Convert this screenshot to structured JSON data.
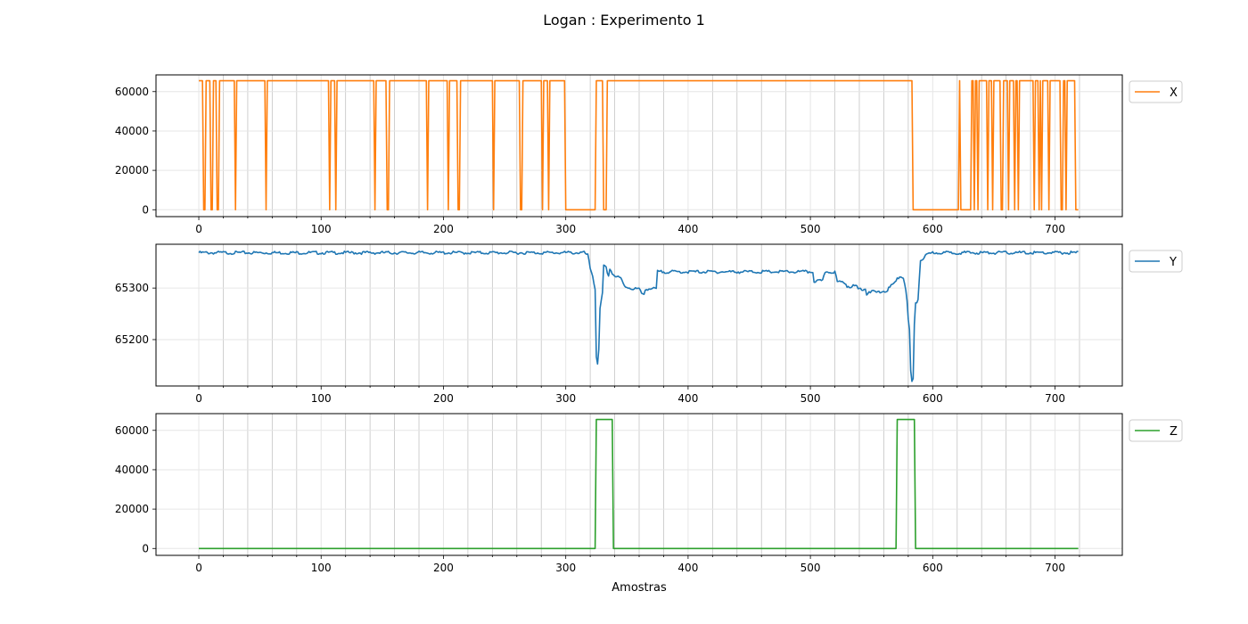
{
  "figure": {
    "title": "Logan : Experimento 1"
  },
  "chart_data": [
    {
      "type": "line",
      "title": "",
      "xlabel": "",
      "ylabel": "",
      "xlim": [
        -35,
        755
      ],
      "ylim": [
        -3500,
        68500
      ],
      "xticks": [
        0,
        100,
        200,
        300,
        400,
        500,
        600,
        700
      ],
      "yticks": [
        0,
        20000,
        40000,
        60000
      ],
      "grid": true,
      "legend": "outside-right-top",
      "series": [
        {
          "name": "X",
          "color": "#ff7f0e",
          "mode": "binary",
          "low": 0,
          "high": 65535,
          "start": 0,
          "end": 719,
          "high_intervals": [
            [
              0,
              3
            ],
            [
              6,
              9
            ],
            [
              12,
              14
            ],
            [
              17,
              29
            ],
            [
              31,
              54
            ],
            [
              56,
              106
            ],
            [
              108,
              111
            ],
            [
              113,
              143
            ],
            [
              145,
              153
            ],
            [
              156,
              186
            ],
            [
              188,
              203
            ],
            [
              205,
              211
            ],
            [
              214,
              240
            ],
            [
              242,
              262
            ],
            [
              265,
              280
            ],
            [
              282,
              285
            ],
            [
              287,
              299
            ],
            [
              325,
              330
            ],
            [
              334,
              583
            ],
            [
              622,
              622
            ],
            [
              632,
              633
            ],
            [
              635,
              636
            ],
            [
              638,
              644
            ],
            [
              646,
              648
            ],
            [
              650,
              655
            ],
            [
              658,
              661
            ],
            [
              663,
              664
            ],
            [
              665,
              666
            ],
            [
              668,
              669
            ],
            [
              671,
              672
            ],
            [
              673,
              682
            ],
            [
              684,
              686
            ],
            [
              688,
              688
            ],
            [
              690,
              694
            ],
            [
              696,
              704
            ],
            [
              707,
              708
            ],
            [
              710,
              713
            ],
            [
              714,
              716
            ]
          ]
        }
      ]
    },
    {
      "type": "line",
      "title": "",
      "xlabel": "",
      "ylabel": "",
      "xlim": [
        -35,
        755
      ],
      "ylim": [
        65110,
        65385
      ],
      "xticks": [
        0,
        100,
        200,
        300,
        400,
        500,
        600,
        700
      ],
      "yticks": [
        65200,
        65300
      ],
      "grid": true,
      "legend": "outside-right-top",
      "series": [
        {
          "name": "Y",
          "color": "#1f77b4",
          "mode": "points",
          "base": 65370,
          "noise": 1.5,
          "points": [
            [
              0,
              65370
            ],
            [
              315,
              65370
            ],
            [
              318,
              65365
            ],
            [
              320,
              65340
            ],
            [
              322,
              65325
            ],
            [
              324,
              65300
            ],
            [
              325,
              65170
            ],
            [
              326,
              65155
            ],
            [
              327,
              65180
            ],
            [
              328,
              65260
            ],
            [
              330,
              65290
            ],
            [
              331,
              65345
            ],
            [
              333,
              65340
            ],
            [
              335,
              65325
            ],
            [
              336,
              65340
            ],
            [
              338,
              65330
            ],
            [
              340,
              65325
            ],
            [
              345,
              65320
            ],
            [
              348,
              65305
            ],
            [
              355,
              65300
            ],
            [
              360,
              65300
            ],
            [
              362,
              65290
            ],
            [
              364,
              65290
            ],
            [
              365,
              65300
            ],
            [
              373,
              65300
            ],
            [
              374,
              65300
            ],
            [
              375,
              65333
            ],
            [
              380,
              65333
            ],
            [
              400,
              65333
            ],
            [
              450,
              65333
            ],
            [
              490,
              65333
            ],
            [
              502,
              65333
            ],
            [
              503,
              65315
            ],
            [
              510,
              65315
            ],
            [
              512,
              65333
            ],
            [
              520,
              65333
            ],
            [
              522,
              65313
            ],
            [
              528,
              65313
            ],
            [
              530,
              65305
            ],
            [
              538,
              65305
            ],
            [
              539,
              65300
            ],
            [
              545,
              65300
            ],
            [
              546,
              65290
            ],
            [
              548,
              65295
            ],
            [
              555,
              65293
            ],
            [
              562,
              65296
            ],
            [
              566,
              65305
            ],
            [
              570,
              65315
            ],
            [
              573,
              65325
            ],
            [
              576,
              65322
            ],
            [
              578,
              65300
            ],
            [
              579,
              65275
            ],
            [
              580,
              65240
            ],
            [
              581,
              65220
            ],
            [
              582,
              65140
            ],
            [
              583,
              65120
            ],
            [
              584,
              65125
            ],
            [
              585,
              65230
            ],
            [
              586,
              65270
            ],
            [
              588,
              65280
            ],
            [
              590,
              65355
            ],
            [
              595,
              65365
            ],
            [
              600,
              65370
            ],
            [
              719,
              65370
            ]
          ]
        }
      ]
    },
    {
      "type": "line",
      "title": "",
      "xlabel": "Amostras",
      "ylabel": "",
      "xlim": [
        -35,
        755
      ],
      "ylim": [
        -3500,
        68500
      ],
      "xticks": [
        0,
        100,
        200,
        300,
        400,
        500,
        600,
        700
      ],
      "yticks": [
        0,
        20000,
        40000,
        60000
      ],
      "grid": true,
      "legend": "outside-right-top",
      "series": [
        {
          "name": "Z",
          "color": "#2ca02c",
          "mode": "binary",
          "low": 0,
          "high": 65535,
          "start": 0,
          "end": 719,
          "high_intervals": [
            [
              325,
              338
            ],
            [
              571,
              585
            ]
          ]
        }
      ]
    }
  ]
}
